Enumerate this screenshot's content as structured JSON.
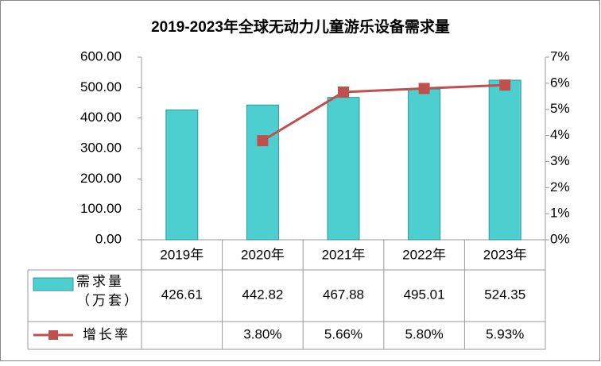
{
  "chart_data": {
    "type": "bar",
    "title": "2019-2023年全球无动力儿童游乐设备需求量",
    "categories": [
      "2019年",
      "2020年",
      "2021年",
      "2022年",
      "2023年"
    ],
    "series": [
      {
        "name": "需求量（万套）",
        "type": "bar",
        "color": "#4ECFCF",
        "values": [
          426.61,
          442.82,
          467.88,
          495.01,
          524.35
        ]
      },
      {
        "name": "增长率",
        "type": "line",
        "axis": "y2",
        "color": "#C0504D",
        "values": [
          null,
          3.8,
          5.66,
          5.8,
          5.93
        ],
        "value_labels": [
          null,
          "3.80%",
          "5.66%",
          "5.80%",
          "5.93%"
        ]
      }
    ],
    "ylim": [
      0,
      600
    ],
    "yticks": [
      {
        "value": 0,
        "label": "0.00"
      },
      {
        "value": 100,
        "label": "100.00"
      },
      {
        "value": 200,
        "label": "200.00"
      },
      {
        "value": 300,
        "label": "300.00"
      },
      {
        "value": 400,
        "label": "400.00"
      },
      {
        "value": 500,
        "label": "500.00"
      },
      {
        "value": 600,
        "label": "600.00"
      }
    ],
    "y2lim": [
      0,
      7
    ],
    "y2ticks": [
      {
        "value": 0,
        "label": "0%"
      },
      {
        "value": 1,
        "label": "1%"
      },
      {
        "value": 2,
        "label": "2%"
      },
      {
        "value": 3,
        "label": "3%"
      },
      {
        "value": 4,
        "label": "4%"
      },
      {
        "value": 5,
        "label": "5%"
      },
      {
        "value": 6,
        "label": "6%"
      },
      {
        "value": 7,
        "label": "7%"
      }
    ],
    "grid": false
  }
}
